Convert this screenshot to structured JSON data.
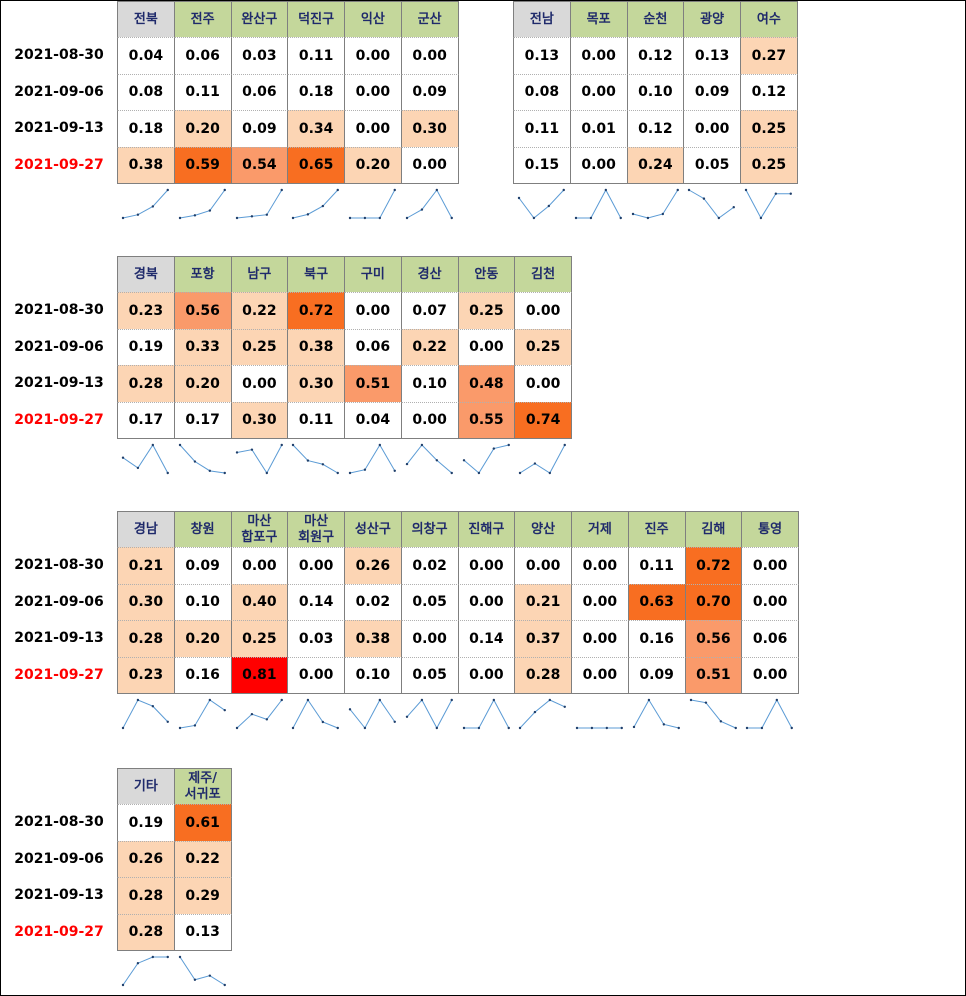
{
  "dates": [
    "2021-08-30",
    "2021-09-06",
    "2021-09-13",
    "2021-09-27"
  ],
  "chart_data": {
    "type": "table",
    "row_labels": [
      "2021-08-30",
      "2021-09-06",
      "2021-09-13",
      "2021-09-27"
    ],
    "highlighted_row": "2021-09-27",
    "sparklines": "line per column",
    "tables": [
      {
        "columns": [
          {
            "name": "전북",
            "values": [
              0.04,
              0.08,
              0.18,
              0.38
            ],
            "labels": [
              "0.04",
              "0.08",
              "0.18",
              "0.38"
            ]
          },
          {
            "name": "전주",
            "values": [
              0.06,
              0.11,
              0.2,
              0.59
            ],
            "labels": [
              "0.06",
              "0.11",
              "0.20",
              "0.59"
            ]
          },
          {
            "name": "완산구",
            "values": [
              0.03,
              0.06,
              0.09,
              0.54
            ],
            "labels": [
              "0.03",
              "0.06",
              "0.09",
              "0.54"
            ]
          },
          {
            "name": "덕진구",
            "values": [
              0.11,
              0.18,
              0.34,
              0.65
            ],
            "labels": [
              "0.11",
              "0.18",
              "0.34",
              "0.65"
            ]
          },
          {
            "name": "익산",
            "values": [
              0.0,
              0.0,
              0.0,
              0.2
            ],
            "labels": [
              "0.00",
              "0.00",
              "0.00",
              "0.20"
            ]
          },
          {
            "name": "군산",
            "values": [
              0.0,
              0.09,
              0.3,
              0.0
            ],
            "labels": [
              "0.00",
              "0.09",
              "0.30",
              "0.00"
            ]
          }
        ]
      },
      {
        "columns": [
          {
            "name": "전남",
            "values": [
              0.13,
              0.08,
              0.11,
              0.15
            ],
            "labels": [
              "0.13",
              "0.08",
              "0.11",
              "0.15"
            ]
          },
          {
            "name": "목포",
            "values": [
              0.0,
              0.0,
              0.01,
              0.0
            ],
            "labels": [
              "0.00",
              "0.00",
              "0.01",
              "0.00"
            ]
          },
          {
            "name": "순천",
            "values": [
              0.12,
              0.1,
              0.12,
              0.24
            ],
            "labels": [
              "0.12",
              "0.10",
              "0.12",
              "0.24"
            ]
          },
          {
            "name": "광양",
            "values": [
              0.13,
              0.09,
              0.0,
              0.05
            ],
            "labels": [
              "0.13",
              "0.09",
              "0.00",
              "0.05"
            ]
          },
          {
            "name": "여수",
            "values": [
              0.27,
              0.12,
              0.25,
              0.25
            ],
            "labels": [
              "0.27",
              "0.12",
              "0.25",
              "0.25"
            ]
          }
        ]
      },
      {
        "columns": [
          {
            "name": "경북",
            "values": [
              0.23,
              0.19,
              0.28,
              0.17
            ],
            "labels": [
              "0.23",
              "0.19",
              "0.28",
              "0.17"
            ]
          },
          {
            "name": "포항",
            "values": [
              0.56,
              0.33,
              0.2,
              0.17
            ],
            "labels": [
              "0.56",
              "0.33",
              "0.20",
              "0.17"
            ]
          },
          {
            "name": "남구",
            "values": [
              0.22,
              0.25,
              0.0,
              0.3
            ],
            "labels": [
              "0.22",
              "0.25",
              "0.00",
              "0.30"
            ]
          },
          {
            "name": "북구",
            "values": [
              0.72,
              0.38,
              0.3,
              0.11
            ],
            "labels": [
              "0.72",
              "0.38",
              "0.30",
              "0.11"
            ]
          },
          {
            "name": "구미",
            "values": [
              0.0,
              0.06,
              0.51,
              0.04
            ],
            "labels": [
              "0.00",
              "0.06",
              "0.51",
              "0.04"
            ]
          },
          {
            "name": "경산",
            "values": [
              0.07,
              0.22,
              0.1,
              0.0
            ],
            "labels": [
              "0.07",
              "0.22",
              "0.10",
              "0.00"
            ]
          },
          {
            "name": "안동",
            "values": [
              0.25,
              0.0,
              0.48,
              0.55
            ],
            "labels": [
              "0.25",
              "0.00",
              "0.48",
              "0.55"
            ]
          },
          {
            "name": "김천",
            "values": [
              0.0,
              0.25,
              0.0,
              0.74
            ],
            "labels": [
              "0.00",
              "0.25",
              "0.00",
              "0.74"
            ]
          }
        ]
      },
      {
        "columns": [
          {
            "name": "경남",
            "values": [
              0.21,
              0.3,
              0.28,
              0.23
            ],
            "labels": [
              "0.21",
              "0.30",
              "0.28",
              "0.23"
            ]
          },
          {
            "name": "창원",
            "values": [
              0.09,
              0.1,
              0.2,
              0.16
            ],
            "labels": [
              "0.09",
              "0.10",
              "0.20",
              "0.16"
            ]
          },
          {
            "name": "마산\n합포구",
            "values": [
              0.0,
              0.4,
              0.25,
              0.81
            ],
            "labels": [
              "0.00",
              "0.40",
              "0.25",
              "0.81"
            ]
          },
          {
            "name": "마산\n회원구",
            "values": [
              0.0,
              0.14,
              0.03,
              0.0
            ],
            "labels": [
              "0.00",
              "0.14",
              "0.03",
              "0.00"
            ]
          },
          {
            "name": "성산구",
            "values": [
              0.26,
              0.02,
              0.38,
              0.1
            ],
            "labels": [
              "0.26",
              "0.02",
              "0.38",
              "0.10"
            ]
          },
          {
            "name": "의창구",
            "values": [
              0.02,
              0.05,
              0.0,
              0.05
            ],
            "labels": [
              "0.02",
              "0.05",
              "0.00",
              "0.05"
            ]
          },
          {
            "name": "진해구",
            "values": [
              0.0,
              0.0,
              0.14,
              0.0
            ],
            "labels": [
              "0.00",
              "0.00",
              "0.14",
              "0.00"
            ]
          },
          {
            "name": "양산",
            "values": [
              0.0,
              0.21,
              0.37,
              0.28
            ],
            "labels": [
              "0.00",
              "0.21",
              "0.37",
              "0.28"
            ]
          },
          {
            "name": "거제",
            "values": [
              0.0,
              0.0,
              0.0,
              0.0
            ],
            "labels": [
              "0.00",
              "0.00",
              "0.00",
              "0.00"
            ]
          },
          {
            "name": "진주",
            "values": [
              0.11,
              0.63,
              0.16,
              0.09
            ],
            "labels": [
              "0.11",
              "0.63",
              "0.16",
              "0.09"
            ]
          },
          {
            "name": "김해",
            "values": [
              0.72,
              0.7,
              0.56,
              0.51
            ],
            "labels": [
              "0.72",
              "0.70",
              "0.56",
              "0.51"
            ]
          },
          {
            "name": "통영",
            "values": [
              0.0,
              0.0,
              0.06,
              0.0
            ],
            "labels": [
              "0.00",
              "0.00",
              "0.06",
              "0.00"
            ]
          }
        ]
      },
      {
        "columns": [
          {
            "name": "기타",
            "values": [
              0.19,
              0.26,
              0.28,
              0.28
            ],
            "labels": [
              "0.19",
              "0.26",
              "0.28",
              "0.28"
            ]
          },
          {
            "name": "제주/\n서귀포",
            "values": [
              0.61,
              0.22,
              0.29,
              0.13
            ],
            "labels": [
              "0.61",
              "0.22",
              "0.29",
              "0.13"
            ]
          }
        ]
      }
    ]
  },
  "colors": {
    "header_first": "#d9d9d9",
    "header": "#c4d79b",
    "header_text": "#1f2a6b",
    "highlight_date": "#ff0000",
    "sparkline": "#5b9bd5",
    "fill_light": "#fcd5b4",
    "fill_mid": "#fa9a6a",
    "fill_strong": "#f86e21",
    "fill_max": "#ff0000"
  }
}
